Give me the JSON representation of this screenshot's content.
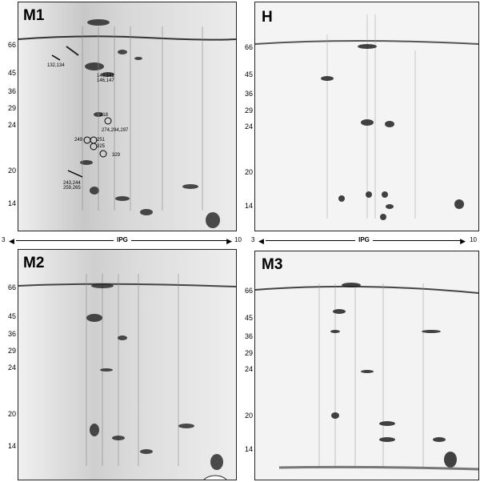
{
  "panels": [
    {
      "id": "M1",
      "label": "M1",
      "mw_ticks": [
        "66",
        "45",
        "36",
        "29",
        "24",
        "20",
        "14"
      ],
      "ipg": {
        "low": "3",
        "title": "IPG",
        "high": "10"
      },
      "annotations": [
        "132,134",
        "140,141\n146,147",
        "218",
        "274,294,297",
        "249",
        "251",
        "325",
        "329",
        "243,244\n259,265"
      ]
    },
    {
      "id": "H",
      "label": "H",
      "mw_ticks": [
        "66",
        "45",
        "36",
        "29",
        "24",
        "20",
        "14"
      ],
      "ipg": {
        "low": "3",
        "title": "IPG",
        "high": "10"
      }
    },
    {
      "id": "M2",
      "label": "M2",
      "mw_ticks": [
        "66",
        "45",
        "36",
        "29",
        "24",
        "20",
        "14"
      ]
    },
    {
      "id": "M3",
      "label": "M3",
      "mw_ticks": [
        "66",
        "45",
        "36",
        "29",
        "24",
        "20",
        "14"
      ]
    }
  ]
}
